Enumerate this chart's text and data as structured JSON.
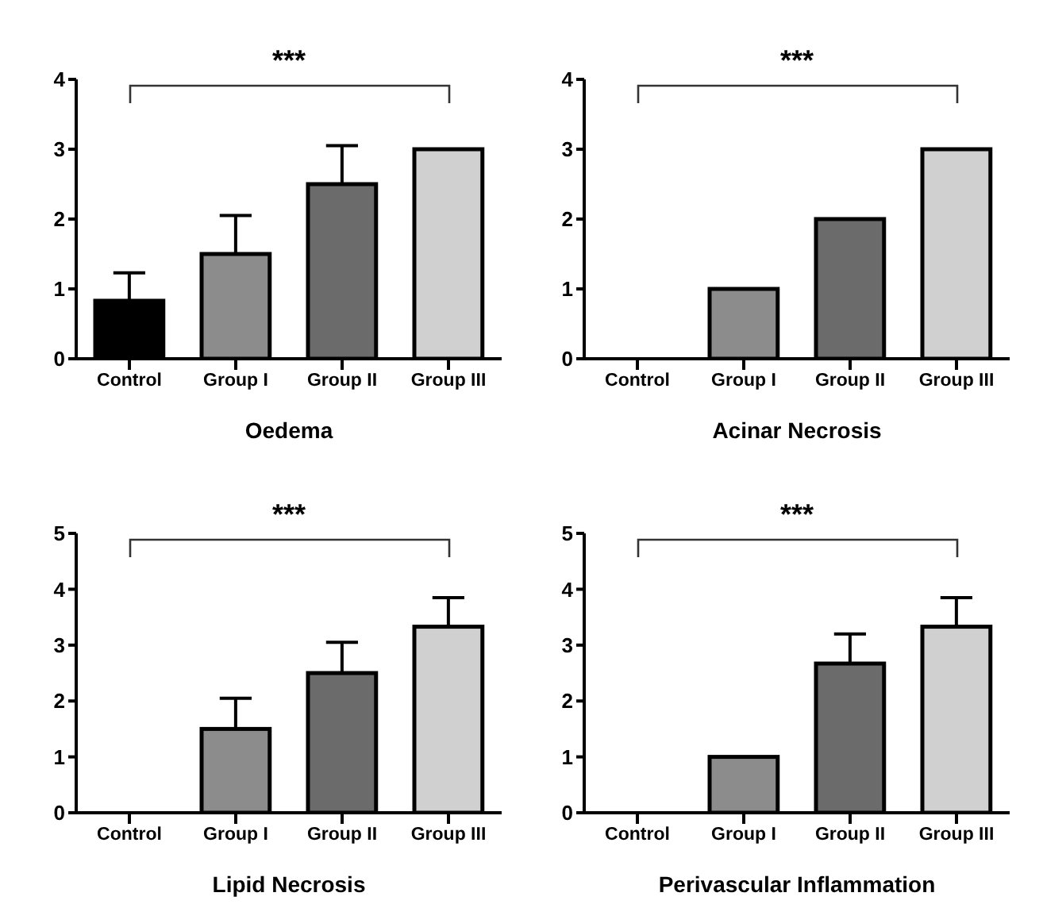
{
  "chart_data": [
    {
      "type": "bar",
      "xlabel": "Oedema",
      "categories": [
        "Control",
        "Group I",
        "Group II",
        "Group III"
      ],
      "values": [
        0.83,
        1.5,
        2.5,
        3
      ],
      "colors": [
        "#000000",
        "#8c8c8c",
        "#6b6b6b",
        "#d0d0d0"
      ],
      "errors": [
        [
          0.83,
          1.23
        ],
        [
          1.5,
          2.05
        ],
        [
          2.5,
          3.05
        ],
        null
      ],
      "ylim": [
        0,
        4
      ],
      "yticks": [
        0,
        1,
        2,
        3,
        4
      ],
      "grid": false,
      "legend": false,
      "annotations": [
        "***"
      ]
    },
    {
      "type": "bar",
      "xlabel": "Acinar Necrosis",
      "categories": [
        "Control",
        "Group I",
        "Group II",
        "Group III"
      ],
      "values": [
        0,
        1,
        2,
        3
      ],
      "colors": [
        "#000000",
        "#8c8c8c",
        "#6b6b6b",
        "#d0d0d0"
      ],
      "ylim": [
        0,
        4
      ],
      "yticks": [
        0,
        1,
        2,
        3,
        4
      ],
      "grid": false,
      "legend": false,
      "annotations": [
        "***"
      ]
    },
    {
      "type": "bar",
      "xlabel": "Lipid Necrosis",
      "categories": [
        "Control",
        "Group I",
        "Group II",
        "Group III"
      ],
      "values": [
        0,
        1.5,
        2.5,
        3.33
      ],
      "colors": [
        "#000000",
        "#8c8c8c",
        "#6b6b6b",
        "#d0d0d0"
      ],
      "errors": [
        null,
        [
          1.5,
          2.05
        ],
        [
          2.5,
          3.05
        ],
        [
          3.33,
          3.85
        ]
      ],
      "ylim": [
        0,
        5
      ],
      "yticks": [
        0,
        1,
        2,
        3,
        4,
        5
      ],
      "grid": false,
      "legend": false,
      "annotations": [
        "***"
      ]
    },
    {
      "type": "bar",
      "xlabel": "Perivascular Inflammation",
      "categories": [
        "Control",
        "Group I",
        "Group II",
        "Group III"
      ],
      "values": [
        0,
        1,
        2.67,
        3.33
      ],
      "colors": [
        "#000000",
        "#8c8c8c",
        "#6b6b6b",
        "#d0d0d0"
      ],
      "errors": [
        null,
        null,
        [
          2.67,
          3.2
        ],
        [
          3.33,
          3.85
        ]
      ],
      "ylim": [
        0,
        5
      ],
      "yticks": [
        0,
        1,
        2,
        3,
        4,
        5
      ],
      "grid": false,
      "legend": false,
      "annotations": [
        "***"
      ]
    }
  ]
}
